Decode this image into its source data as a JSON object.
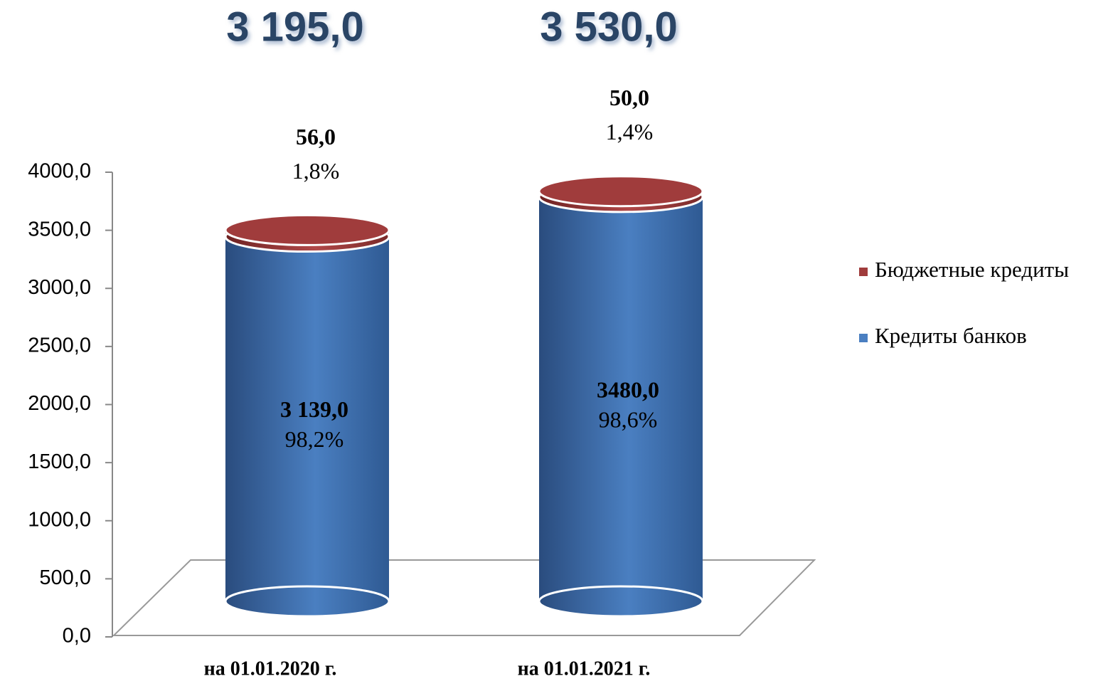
{
  "chart_data": {
    "type": "stacked_cylinder",
    "categories": [
      "на 01.01.2020 г.",
      "на 01.01.2021 г."
    ],
    "totals": [
      3195,
      3530
    ],
    "total_labels": [
      "3 195,0",
      "3 530,0"
    ],
    "series": [
      {
        "name": "Кредиты банков",
        "color": "#4a7fc1",
        "values": [
          3139,
          3480
        ],
        "value_labels": [
          "3 139,0",
          "3480,0"
        ],
        "share_labels": [
          "98,2%",
          "98,6%"
        ]
      },
      {
        "name": "Бюджетные кредиты",
        "color": "#a03c3c",
        "values": [
          56,
          50
        ],
        "value_labels": [
          "56,0",
          "50,0"
        ],
        "share_labels": [
          "1,8%",
          "1,4%"
        ]
      }
    ],
    "ylim": [
      0,
      4000
    ],
    "yticks": [
      {
        "value": 0,
        "label": "0,0"
      },
      {
        "value": 500,
        "label": "500,0"
      },
      {
        "value": 1000,
        "label": "1000,0"
      },
      {
        "value": 1500,
        "label": "1500,0"
      },
      {
        "value": 2000,
        "label": "2000,0"
      },
      {
        "value": 2500,
        "label": "2500,0"
      },
      {
        "value": 3000,
        "label": "3000,0"
      },
      {
        "value": 3500,
        "label": "3500,0"
      },
      {
        "value": 4000,
        "label": "4000,0"
      }
    ],
    "legend": "right"
  }
}
